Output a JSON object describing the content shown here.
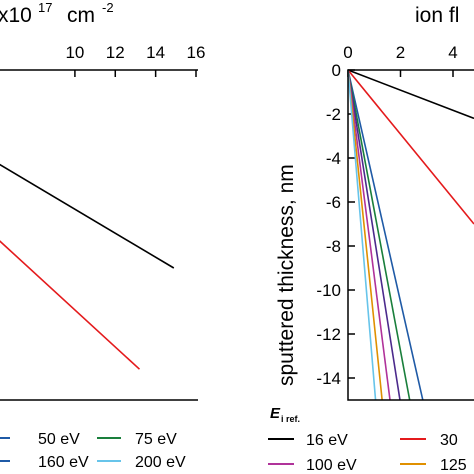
{
  "chart_data": [
    {
      "type": "line",
      "panel": "left",
      "xlabel_prefix": "x10",
      "xlabel_exponent": "17",
      "xlabel_unit": "cm",
      "xlabel_unit_exponent": "-2",
      "x_ticks": [
        "10",
        "12",
        "14",
        "16"
      ],
      "xlim": [
        5,
        16
      ],
      "ylim": [
        -15,
        0
      ],
      "series": [
        {
          "color": "#000000",
          "x": [
            5,
            14.9
          ],
          "y": [
            -3.6,
            -9.0
          ]
        },
        {
          "color": "#e41a1c",
          "x": [
            5,
            13.2
          ],
          "y": [
            -6.7,
            -13.6
          ]
        }
      ],
      "legend": {
        "rows": [
          [
            {
              "label": "50 eV",
              "color": "#1f5aa6"
            },
            {
              "label": "75 eV",
              "color": "#1a7f3c"
            }
          ],
          [
            {
              "label": "160 eV",
              "color": "#1f5aa6"
            },
            {
              "label": "200 eV",
              "color": "#67c4ea"
            }
          ]
        ]
      }
    },
    {
      "type": "line",
      "panel": "right",
      "xlabel": "ion fl",
      "ylabel": "sputtered thickness, nm",
      "x_ticks": [
        "0",
        "2",
        "4"
      ],
      "y_ticks": [
        "0",
        "-2",
        "-4",
        "-6",
        "-8",
        "-10",
        "-12",
        "-14"
      ],
      "xlim": [
        0,
        4.8
      ],
      "ylim": [
        -15,
        0
      ],
      "series": [
        {
          "name": "16 eV",
          "color": "#000000",
          "x": [
            0,
            4.8
          ],
          "y": [
            0,
            -2.2
          ]
        },
        {
          "name": "30",
          "color": "#e41a1c",
          "x": [
            0,
            4.8
          ],
          "y": [
            0,
            -7.0
          ]
        },
        {
          "color": "#1f5aa6",
          "x": [
            0,
            2.85
          ],
          "y": [
            0,
            -15
          ]
        },
        {
          "color": "#1a7f3c",
          "x": [
            0,
            2.35
          ],
          "y": [
            0,
            -15
          ]
        },
        {
          "color": "#4b2a8c",
          "x": [
            0,
            1.98
          ],
          "y": [
            0,
            -15
          ]
        },
        {
          "name": "100 eV",
          "color": "#b0329a",
          "x": [
            0,
            1.6
          ],
          "y": [
            0,
            -15
          ]
        },
        {
          "color": "#e09000",
          "x": [
            0,
            1.3
          ],
          "y": [
            0,
            -15
          ]
        },
        {
          "color": "#67c4ea",
          "x": [
            0,
            1.05
          ],
          "y": [
            0,
            -15
          ]
        }
      ],
      "legend": {
        "title_main": "E",
        "title_sub": "i ref.",
        "rows": [
          [
            {
              "label": "16 eV",
              "color": "#000000"
            },
            {
              "label": "30",
              "color": "#e41a1c"
            }
          ],
          [
            {
              "label": "100 eV",
              "color": "#b0329a"
            },
            {
              "label": "125",
              "color": "#e09000"
            }
          ]
        ]
      }
    }
  ]
}
